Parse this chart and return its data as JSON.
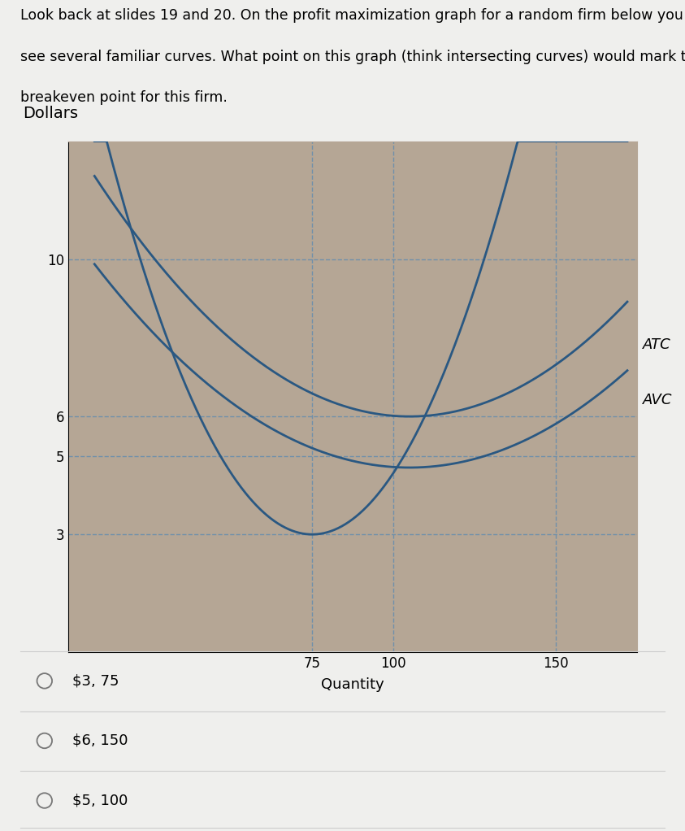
{
  "title_text": "Look back at slides 19 and 20. On the profit maximization graph for a random firm below you\nsee several familiar curves. What point on this graph (think intersecting curves) would mark the\nbreakeven point for this firm.",
  "ylabel": "Dollars",
  "xlabel": "Quantity",
  "yticks": [
    3,
    5,
    6,
    10
  ],
  "xticks": [
    75,
    100,
    150
  ],
  "xlim": [
    0,
    175
  ],
  "ylim": [
    0,
    13
  ],
  "curve_color": "#2a5882",
  "dashed_color": "#7090aa",
  "bg_color": "#b5a695",
  "panel_bg": "#efefed",
  "chart_border": "#888888",
  "choices": [
    "$3, 75",
    "$6, 150",
    "$5, 100"
  ],
  "mc_params": [
    0.0025,
    75,
    3.0
  ],
  "atc_params": [
    0.00065,
    105,
    6.0
  ],
  "avc_params": [
    0.00055,
    105,
    4.7
  ]
}
